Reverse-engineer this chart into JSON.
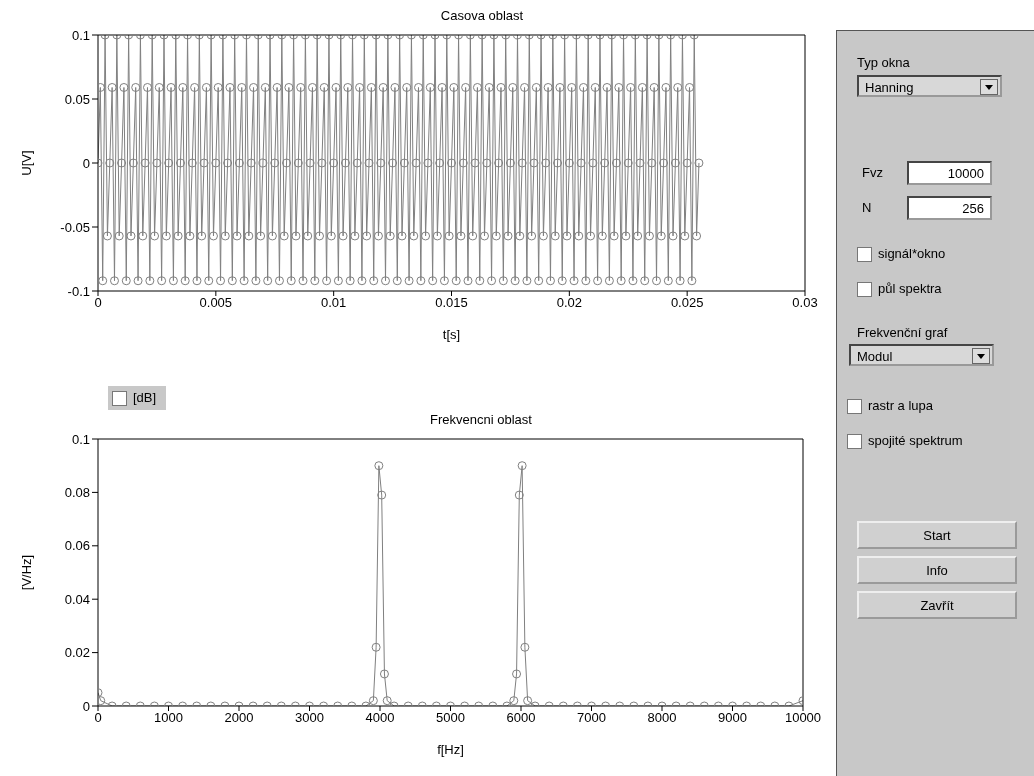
{
  "chart_data": [
    {
      "type": "line",
      "title": "Casova oblast",
      "xlabel": "t[s]",
      "ylabel": "U[V]",
      "xlim": [
        0,
        0.03
      ],
      "xticks": [
        0,
        0.005,
        0.01,
        0.015,
        0.02,
        0.025,
        0.03
      ],
      "ylim": [
        -0.1,
        0.1
      ],
      "yticks": [
        -0.1,
        -0.05,
        0,
        0.05,
        0.1
      ],
      "marker": "circle",
      "line_style": "solid",
      "series": [
        {
          "color": "#808080",
          "x": [
            0,
            0.0001,
            0.0002,
            0.0003,
            0.0004,
            0.0005,
            0.0006,
            0.0007,
            0.0008,
            0.0009,
            0.001,
            0.0011,
            0.0012,
            0.0013,
            0.0014,
            0.0015,
            0.0016,
            0.0017,
            0.0018,
            0.0019,
            0.002,
            0.0021,
            0.0022,
            0.0023,
            0.0024,
            0.0025,
            0.0026,
            0.0027,
            0.0028,
            0.0029,
            0.003,
            0.0031,
            0.0032,
            0.0033,
            0.0034,
            0.0035,
            0.0036,
            0.0037,
            0.0038,
            0.0039,
            0.004,
            0.0041,
            0.0042,
            0.0043,
            0.0044,
            0.0045,
            0.0046,
            0.0047,
            0.0048,
            0.0049,
            0.005,
            0.0051,
            0.0052,
            0.0053,
            0.0054,
            0.0055,
            0.0056,
            0.0057,
            0.0058,
            0.0059,
            0.006,
            0.0061,
            0.0062,
            0.0063,
            0.0064,
            0.0065,
            0.0066,
            0.0067,
            0.0068,
            0.0069,
            0.007,
            0.0071,
            0.0072,
            0.0073,
            0.0074,
            0.0075,
            0.0076,
            0.0077,
            0.0078,
            0.0079,
            0.008,
            0.0081,
            0.0082,
            0.0083,
            0.0084,
            0.0085,
            0.0086,
            0.0087,
            0.0088,
            0.0089,
            0.009,
            0.0091,
            0.0092,
            0.0093,
            0.0094,
            0.0095,
            0.0096,
            0.0097,
            0.0098,
            0.0099,
            0.01,
            0.0101,
            0.0102,
            0.0103,
            0.0104,
            0.0105,
            0.0106,
            0.0107,
            0.0108,
            0.0109,
            0.011,
            0.0111,
            0.0112,
            0.0113,
            0.0114,
            0.0115,
            0.0116,
            0.0117,
            0.0118,
            0.0119,
            0.012,
            0.0121,
            0.0122,
            0.0123,
            0.0124,
            0.0125,
            0.0126,
            0.0127,
            0.0128,
            0.0129,
            0.013,
            0.0131,
            0.0132,
            0.0133,
            0.0134,
            0.0135,
            0.0136,
            0.0137,
            0.0138,
            0.0139,
            0.014,
            0.0141,
            0.0142,
            0.0143,
            0.0144,
            0.0145,
            0.0146,
            0.0147,
            0.0148,
            0.0149,
            0.015,
            0.0151,
            0.0152,
            0.0153,
            0.0154,
            0.0155,
            0.0156,
            0.0157,
            0.0158,
            0.0159,
            0.016,
            0.0161,
            0.0162,
            0.0163,
            0.0164,
            0.0165,
            0.0166,
            0.0167,
            0.0168,
            0.0169,
            0.017,
            0.0171,
            0.0172,
            0.0173,
            0.0174,
            0.0175,
            0.0176,
            0.0177,
            0.0178,
            0.0179,
            0.018,
            0.0181,
            0.0182,
            0.0183,
            0.0184,
            0.0185,
            0.0186,
            0.0187,
            0.0188,
            0.0189,
            0.019,
            0.0191,
            0.0192,
            0.0193,
            0.0194,
            0.0195,
            0.0196,
            0.0197,
            0.0198,
            0.0199,
            0.02,
            0.0201,
            0.0202,
            0.0203,
            0.0204,
            0.0205,
            0.0206,
            0.0207,
            0.0208,
            0.0209,
            0.021,
            0.0211,
            0.0212,
            0.0213,
            0.0214,
            0.0215,
            0.0216,
            0.0217,
            0.0218,
            0.0219,
            0.022,
            0.0221,
            0.0222,
            0.0223,
            0.0224,
            0.0225,
            0.0226,
            0.0227,
            0.0228,
            0.0229,
            0.023,
            0.0231,
            0.0232,
            0.0233,
            0.0234,
            0.0235,
            0.0236,
            0.0237,
            0.0238,
            0.0239,
            0.024,
            0.0241,
            0.0242,
            0.0243,
            0.0244,
            0.0245,
            0.0246,
            0.0247,
            0.0248,
            0.0249,
            0.025,
            0.0251,
            0.0252,
            0.0253,
            0.0254,
            0.0255
          ],
          "values": [
            0,
            0.059,
            -0.092,
            0.1,
            -0.057,
            0,
            0.059,
            -0.092,
            0.1,
            -0.057,
            0,
            0.059,
            -0.092,
            0.1,
            -0.057,
            0,
            0.059,
            -0.092,
            0.1,
            -0.057,
            0,
            0.059,
            -0.092,
            0.1,
            -0.057,
            0,
            0.059,
            -0.092,
            0.1,
            -0.057,
            0,
            0.059,
            -0.092,
            0.1,
            -0.057,
            0,
            0.059,
            -0.092,
            0.1,
            -0.057,
            0,
            0.059,
            -0.092,
            0.1,
            -0.057,
            0,
            0.059,
            -0.092,
            0.1,
            -0.057,
            0,
            0.059,
            -0.092,
            0.1,
            -0.057,
            0,
            0.059,
            -0.092,
            0.1,
            -0.057,
            0,
            0.059,
            -0.092,
            0.1,
            -0.057,
            0,
            0.059,
            -0.092,
            0.1,
            -0.057,
            0,
            0.059,
            -0.092,
            0.1,
            -0.057,
            0,
            0.059,
            -0.092,
            0.1,
            -0.057,
            0,
            0.059,
            -0.092,
            0.1,
            -0.057,
            0,
            0.059,
            -0.092,
            0.1,
            -0.057,
            0,
            0.059,
            -0.092,
            0.1,
            -0.057,
            0,
            0.059,
            -0.092,
            0.1,
            -0.057,
            0,
            0.059,
            -0.092,
            0.1,
            -0.057,
            0,
            0.059,
            -0.092,
            0.1,
            -0.057,
            0,
            0.059,
            -0.092,
            0.1,
            -0.057,
            0,
            0.059,
            -0.092,
            0.1,
            -0.057,
            0,
            0.059,
            -0.092,
            0.1,
            -0.057,
            0,
            0.059,
            -0.092,
            0.1,
            -0.057,
            0,
            0.059,
            -0.092,
            0.1,
            -0.057,
            0,
            0.059,
            -0.092,
            0.1,
            -0.057,
            0,
            0.059,
            -0.092,
            0.1,
            -0.057,
            0,
            0.059,
            -0.092,
            0.1,
            -0.057,
            0,
            0.059,
            -0.092,
            0.1,
            -0.057,
            0,
            0.059,
            -0.092,
            0.1,
            -0.057,
            0,
            0.059,
            -0.092,
            0.1,
            -0.057,
            0,
            0.059,
            -0.092,
            0.1,
            -0.057,
            0,
            0.059,
            -0.092,
            0.1,
            -0.057,
            0,
            0.059,
            -0.092,
            0.1,
            -0.057,
            0,
            0.059,
            -0.092,
            0.1,
            -0.057,
            0,
            0.059,
            -0.092,
            0.1,
            -0.057,
            0,
            0.059,
            -0.092,
            0.1,
            -0.057,
            0,
            0.059,
            -0.092,
            0.1,
            -0.057,
            0,
            0.059,
            -0.092,
            0.1,
            -0.057,
            0,
            0.059,
            -0.092,
            0.1,
            -0.057,
            0,
            0.059,
            -0.092,
            0.1,
            -0.057,
            0,
            0.059,
            -0.092,
            0.1,
            -0.057,
            0,
            0.059,
            -0.092,
            0.1,
            -0.057,
            0,
            0.059,
            -0.092,
            0.1,
            -0.057,
            0,
            0.059,
            -0.092,
            0.1,
            -0.057,
            0,
            0.059,
            -0.092,
            0.1,
            -0.057,
            0,
            0.059,
            -0.092,
            0.1,
            -0.057,
            0,
            0.059,
            -0.092,
            0.1,
            -0.057,
            0,
            0.059,
            -0.092,
            0.1,
            -0.057,
            0
          ]
        }
      ]
    },
    {
      "type": "line",
      "title": "Frekvencni oblast",
      "xlabel": "f[Hz]",
      "ylabel": "[V/Hz]",
      "xlim": [
        0,
        10000
      ],
      "xticks": [
        0,
        1000,
        2000,
        3000,
        4000,
        5000,
        6000,
        7000,
        8000,
        9000,
        10000
      ],
      "ylim": [
        0,
        0.1
      ],
      "yticks": [
        0,
        0.02,
        0.04,
        0.06,
        0.08,
        0.1
      ],
      "marker": "circle",
      "line_style": "solid",
      "annotations": [
        "[dB]"
      ],
      "series": [
        {
          "color": "#808080",
          "x": [
            0,
            39,
            200,
            400,
            600,
            800,
            1000,
            1200,
            1400,
            1600,
            1800,
            2000,
            2200,
            2400,
            2600,
            2800,
            3000,
            3200,
            3400,
            3600,
            3800,
            3906,
            3945,
            3984,
            4024,
            4063,
            4102,
            4200,
            4400,
            4600,
            4800,
            5000,
            5200,
            5400,
            5600,
            5800,
            5898,
            5937,
            5976,
            6016,
            6055,
            6094,
            6200,
            6400,
            6600,
            6800,
            7000,
            7200,
            7400,
            7600,
            7800,
            8000,
            8200,
            8400,
            8600,
            8800,
            9000,
            9200,
            9400,
            9600,
            9800,
            10000
          ],
          "values": [
            0.005,
            0.002,
            0,
            0,
            0,
            0,
            0,
            0,
            0,
            0,
            0,
            0,
            0,
            0,
            0,
            0,
            0,
            0,
            0,
            0,
            0,
            0.002,
            0.022,
            0.09,
            0.079,
            0.012,
            0.002,
            0,
            0,
            0,
            0,
            0,
            0,
            0,
            0,
            0,
            0.002,
            0.012,
            0.079,
            0.09,
            0.022,
            0.002,
            0,
            0,
            0,
            0,
            0,
            0,
            0,
            0,
            0,
            0,
            0,
            0,
            0,
            0,
            0,
            0,
            0,
            0,
            0,
            0.002
          ]
        }
      ]
    },
    {
      "type": "other",
      "annotations": [
        "Typ okna",
        "Hanning",
        "Fvz",
        "10000",
        "N",
        "256",
        "signál*okno",
        "půl spektra",
        "Frekvenční graf",
        "Modul",
        "rastr a lupa",
        "spojité spektrum",
        "Start",
        "Info",
        "Zavřít"
      ]
    }
  ]
}
